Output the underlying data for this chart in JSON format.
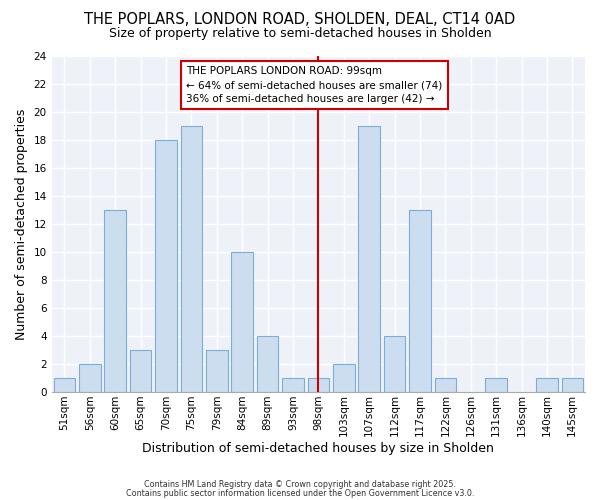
{
  "title": "THE POPLARS, LONDON ROAD, SHOLDEN, DEAL, CT14 0AD",
  "subtitle": "Size of property relative to semi-detached houses in Sholden",
  "xlabel": "Distribution of semi-detached houses by size in Sholden",
  "ylabel": "Number of semi-detached properties",
  "categories": [
    "51sqm",
    "56sqm",
    "60sqm",
    "65sqm",
    "70sqm",
    "75sqm",
    "79sqm",
    "84sqm",
    "89sqm",
    "93sqm",
    "98sqm",
    "103sqm",
    "107sqm",
    "112sqm",
    "117sqm",
    "122sqm",
    "126sqm",
    "131sqm",
    "136sqm",
    "140sqm",
    "145sqm"
  ],
  "values": [
    1,
    2,
    13,
    3,
    18,
    19,
    3,
    10,
    4,
    1,
    1,
    2,
    19,
    4,
    13,
    1,
    0,
    1,
    0,
    1,
    1
  ],
  "bar_color": "#ccddf0",
  "bar_edge_color": "#7badd6",
  "property_index": 10,
  "property_label": "THE POPLARS LONDON ROAD: 99sqm",
  "pct_smaller_label": "← 64% of semi-detached houses are smaller (74)",
  "pct_larger_label": "36% of semi-detached houses are larger (42) →",
  "vline_color": "#cc0000",
  "annotation_box_color": "#cc0000",
  "bg_color": "#eef2f8",
  "grid_color": "#ffffff",
  "ylim": [
    0,
    24
  ],
  "yticks": [
    0,
    2,
    4,
    6,
    8,
    10,
    12,
    14,
    16,
    18,
    20,
    22,
    24
  ],
  "footnote1": "Contains HM Land Registry data © Crown copyright and database right 2025.",
  "footnote2": "Contains public sector information licensed under the Open Government Licence v3.0.",
  "title_fontsize": 10.5,
  "subtitle_fontsize": 9,
  "tick_fontsize": 7.5,
  "label_fontsize": 9,
  "annot_fontsize": 7.5
}
